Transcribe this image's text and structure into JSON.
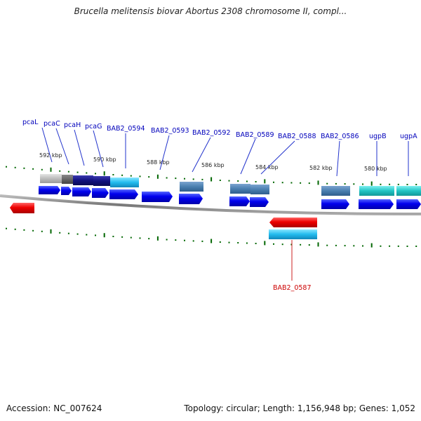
{
  "title": "Brucella melitensis biovar Abortus 2308 chromosome II, compl...",
  "footer": {
    "accession": "Accession: NC_007624",
    "summary": "Topology: circular; Length: 1,156,948 bp; Genes: 1,052"
  },
  "colors": {
    "forward_label": "#0000bb",
    "reverse_label": "#cc0000",
    "tick": "#006600",
    "backbone": "#888888",
    "cds_forward": "#0000dd",
    "cds_reverse": "#dd0000",
    "gene_cyan": "#22bbdd",
    "gene_steel": "#4a7fb0",
    "gene_teal": "#22c0c0",
    "gene_gray": "#bbbbbb",
    "gene_dark": "#11117a"
  },
  "scale_labels": [
    "592 kbp",
    "590 kbp",
    "588 kbp",
    "586 kbp",
    "584 kbp",
    "582 kbp",
    "580 kbp"
  ],
  "genes": [
    {
      "name": "pcaL",
      "strand": "forward"
    },
    {
      "name": "pcaC",
      "strand": "forward"
    },
    {
      "name": "pcaH",
      "strand": "forward"
    },
    {
      "name": "pcaG",
      "strand": "forward"
    },
    {
      "name": "BAB2_0594",
      "strand": "forward"
    },
    {
      "name": "BAB2_0593",
      "strand": "forward"
    },
    {
      "name": "BAB2_0592",
      "strand": "forward"
    },
    {
      "name": "BAB2_0589",
      "strand": "forward"
    },
    {
      "name": "BAB2_0588",
      "strand": "forward"
    },
    {
      "name": "BAB2_0586",
      "strand": "forward"
    },
    {
      "name": "ugpB",
      "strand": "forward"
    },
    {
      "name": "ugpA",
      "strand": "forward"
    },
    {
      "name": "BAB2_0587",
      "strand": "reverse"
    }
  ]
}
